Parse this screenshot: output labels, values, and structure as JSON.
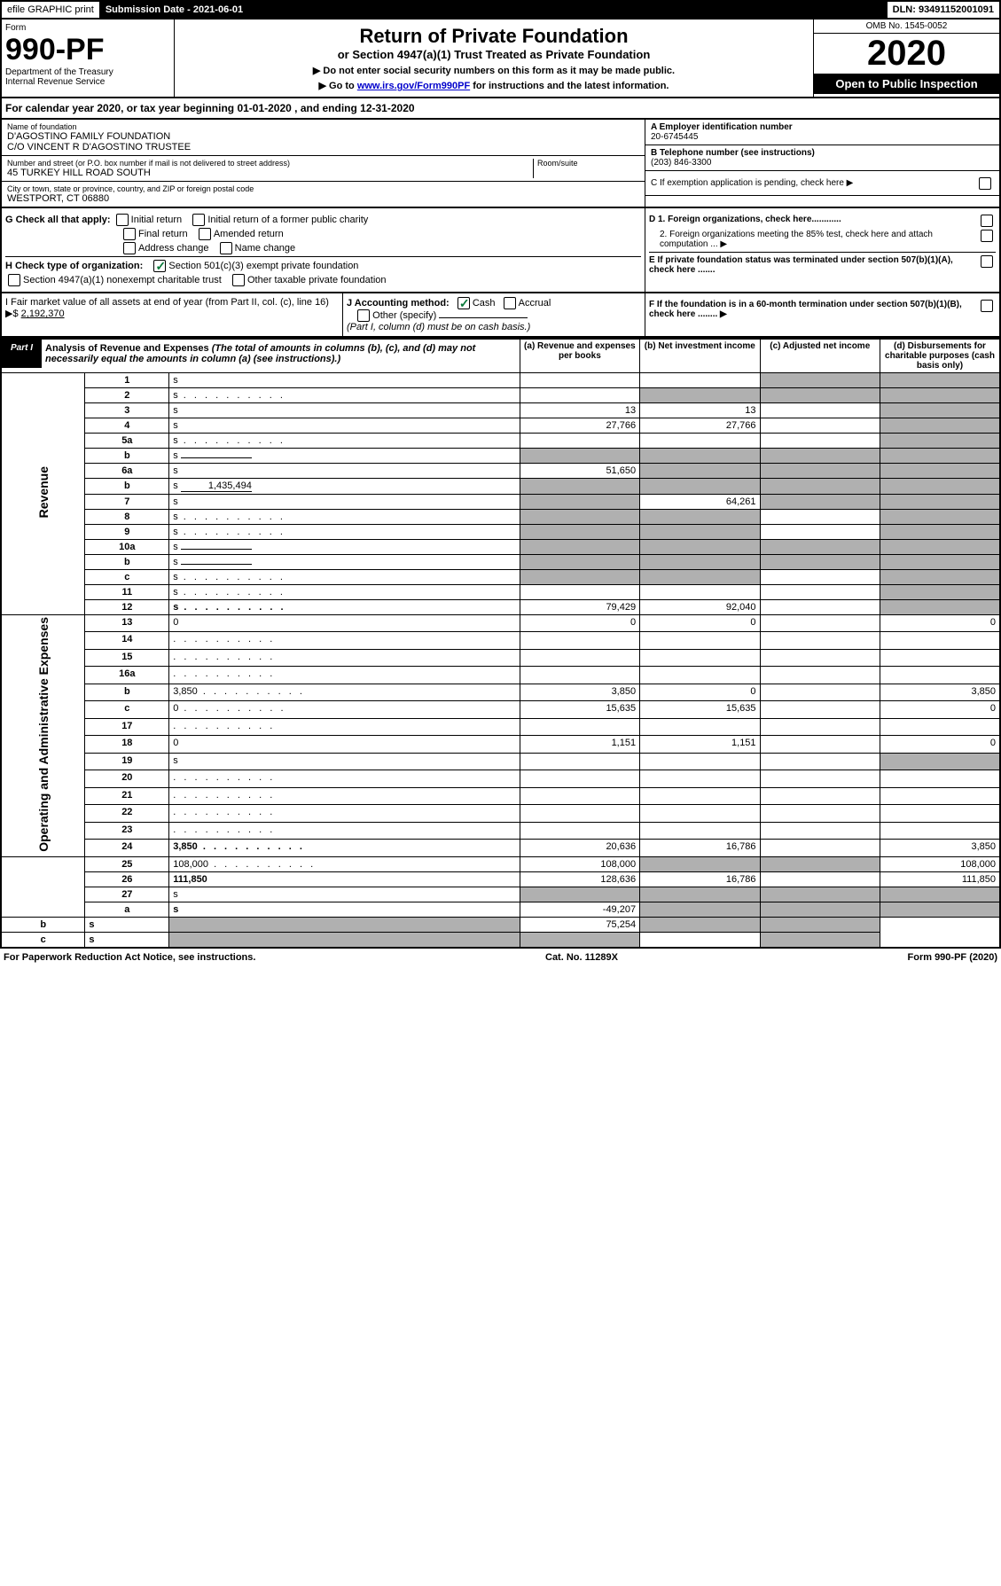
{
  "top": {
    "efile": "efile GRAPHIC print",
    "sub_date_label": "Submission Date - 2021-06-01",
    "dln": "DLN: 93491152001091"
  },
  "header": {
    "form_word": "Form",
    "form_num": "990-PF",
    "dept": "Department of the Treasury",
    "irs": "Internal Revenue Service",
    "title": "Return of Private Foundation",
    "subtitle": "or Section 4947(a)(1) Trust Treated as Private Foundation",
    "inst1": "▶ Do not enter social security numbers on this form as it may be made public.",
    "inst2": "▶ Go to www.irs.gov/Form990PF for instructions and the latest information.",
    "link": "www.irs.gov/Form990PF",
    "omb": "OMB No. 1545-0052",
    "year": "2020",
    "open": "Open to Public Inspection"
  },
  "calyear": "For calendar year 2020, or tax year beginning 01-01-2020                            , and ending 12-31-2020",
  "info": {
    "name_label": "Name of foundation",
    "name_val": "D'AGOSTINO FAMILY FOUNDATION\nC/O VINCENT R D'AGOSTINO TRUSTEE",
    "addr_label": "Number and street (or P.O. box number if mail is not delivered to street address)",
    "room_label": "Room/suite",
    "addr_val": "45 TURKEY HILL ROAD SOUTH",
    "city_label": "City or town, state or province, country, and ZIP or foreign postal code",
    "city_val": "WESTPORT, CT  06880",
    "ein_label": "A Employer identification number",
    "ein_val": "20-6745445",
    "phone_label": "B Telephone number (see instructions)",
    "phone_val": "(203) 846-3300",
    "c_label": "C If exemption application is pending, check here ▶",
    "d1": "D 1. Foreign organizations, check here............",
    "d2": "2. Foreign organizations meeting the 85% test, check here and attach computation ... ▶",
    "e": "E  If private foundation status was terminated under section 507(b)(1)(A), check here .......",
    "f": "F  If the foundation is in a 60-month termination under section 507(b)(1)(B), check here ........ ▶"
  },
  "g": {
    "label": "G Check all that apply:",
    "opts": [
      "Initial return",
      "Initial return of a former public charity",
      "Final return",
      "Amended return",
      "Address change",
      "Name change"
    ]
  },
  "h": {
    "label": "H Check type of organization:",
    "o1": "Section 501(c)(3) exempt private foundation",
    "o2": "Section 4947(a)(1) nonexempt charitable trust",
    "o3": "Other taxable private foundation"
  },
  "i": {
    "label": "I Fair market value of all assets at end of year (from Part II, col. (c), line 16) ▶$",
    "val": "2,192,370"
  },
  "j": {
    "label": "J Accounting method:",
    "cash": "Cash",
    "accrual": "Accrual",
    "other": "Other (specify)",
    "note": "(Part I, column (d) must be on cash basis.)"
  },
  "part1": {
    "tab": "Part I",
    "title": "Analysis of Revenue and Expenses",
    "title_note": "(The total of amounts in columns (b), (c), and (d) may not necessarily equal the amounts in column (a) (see instructions).)",
    "col_a": "(a) Revenue and expenses per books",
    "col_b": "(b) Net investment income",
    "col_c": "(c) Adjusted net income",
    "col_d": "(d) Disbursements for charitable purposes (cash basis only)"
  },
  "vert": {
    "revenue": "Revenue",
    "expenses": "Operating and Administrative Expenses"
  },
  "rows": [
    {
      "n": "1",
      "d": "s",
      "a": "",
      "b": "",
      "c": "s"
    },
    {
      "n": "2",
      "d": "s",
      "a": "",
      "b": "s",
      "c": "s",
      "dots": true
    },
    {
      "n": "3",
      "d": "s",
      "a": "13",
      "b": "13",
      "c": ""
    },
    {
      "n": "4",
      "d": "s",
      "a": "27,766",
      "b": "27,766",
      "c": ""
    },
    {
      "n": "5a",
      "d": "s",
      "a": "",
      "b": "",
      "c": "",
      "dots": true
    },
    {
      "n": "b",
      "d": "s",
      "a": "s",
      "b": "s",
      "c": "s",
      "fill": true
    },
    {
      "n": "6a",
      "d": "s",
      "a": "51,650",
      "b": "s",
      "c": "s"
    },
    {
      "n": "b",
      "d": "s",
      "a": "s",
      "b": "s",
      "c": "s",
      "fill": true,
      "fillval": "1,435,494"
    },
    {
      "n": "7",
      "d": "s",
      "a": "s",
      "b": "64,261",
      "c": "s"
    },
    {
      "n": "8",
      "d": "s",
      "a": "s",
      "b": "s",
      "c": "",
      "dots": true
    },
    {
      "n": "9",
      "d": "s",
      "a": "s",
      "b": "s",
      "c": "",
      "dots": true
    },
    {
      "n": "10a",
      "d": "s",
      "a": "s",
      "b": "s",
      "c": "s",
      "fill": true
    },
    {
      "n": "b",
      "d": "s",
      "a": "s",
      "b": "s",
      "c": "s",
      "fill": true
    },
    {
      "n": "c",
      "d": "s",
      "a": "s",
      "b": "s",
      "c": "",
      "dots": true
    },
    {
      "n": "11",
      "d": "s",
      "a": "",
      "b": "",
      "c": "",
      "dots": true
    },
    {
      "n": "12",
      "d": "s",
      "a": "79,429",
      "b": "92,040",
      "c": "",
      "bold": true,
      "dots": true
    },
    {
      "n": "13",
      "d": "0",
      "a": "0",
      "b": "0",
      "c": ""
    },
    {
      "n": "14",
      "d": "",
      "a": "",
      "b": "",
      "c": "",
      "dots": true
    },
    {
      "n": "15",
      "d": "",
      "a": "",
      "b": "",
      "c": "",
      "dots": true
    },
    {
      "n": "16a",
      "d": "",
      "a": "",
      "b": "",
      "c": "",
      "dots": true
    },
    {
      "n": "b",
      "d": "3,850",
      "a": "3,850",
      "b": "0",
      "c": "",
      "dots": true
    },
    {
      "n": "c",
      "d": "0",
      "a": "15,635",
      "b": "15,635",
      "c": "",
      "dots": true
    },
    {
      "n": "17",
      "d": "",
      "a": "",
      "b": "",
      "c": "",
      "dots": true
    },
    {
      "n": "18",
      "d": "0",
      "a": "1,151",
      "b": "1,151",
      "c": ""
    },
    {
      "n": "19",
      "d": "s",
      "a": "",
      "b": "",
      "c": ""
    },
    {
      "n": "20",
      "d": "",
      "a": "",
      "b": "",
      "c": "",
      "dots": true
    },
    {
      "n": "21",
      "d": "",
      "a": "",
      "b": "",
      "c": "",
      "dots": true
    },
    {
      "n": "22",
      "d": "",
      "a": "",
      "b": "",
      "c": "",
      "dots": true
    },
    {
      "n": "23",
      "d": "",
      "a": "",
      "b": "",
      "c": "",
      "dots": true
    },
    {
      "n": "24",
      "d": "3,850",
      "a": "20,636",
      "b": "16,786",
      "c": "",
      "bold": true,
      "dots": true
    },
    {
      "n": "25",
      "d": "108,000",
      "a": "108,000",
      "b": "s",
      "c": "s",
      "dots": true
    },
    {
      "n": "26",
      "d": "111,850",
      "a": "128,636",
      "b": "16,786",
      "c": "",
      "bold": true
    },
    {
      "n": "27",
      "d": "s",
      "a": "s",
      "b": "s",
      "c": "s"
    },
    {
      "n": "a",
      "d": "s",
      "a": "-49,207",
      "b": "s",
      "c": "s",
      "bold": true
    },
    {
      "n": "b",
      "d": "s",
      "a": "s",
      "b": "75,254",
      "c": "s",
      "bold": true
    },
    {
      "n": "c",
      "d": "s",
      "a": "s",
      "b": "s",
      "c": "",
      "bold": true
    }
  ],
  "footer": {
    "left": "For Paperwork Reduction Act Notice, see instructions.",
    "mid": "Cat. No. 11289X",
    "right": "Form 990-PF (2020)"
  }
}
